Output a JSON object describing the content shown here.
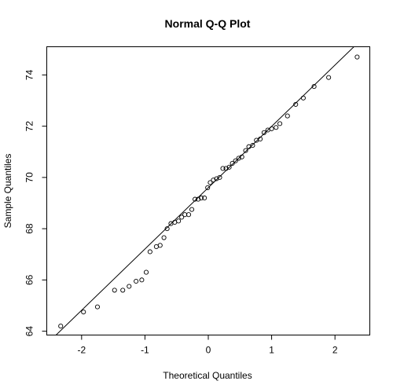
{
  "chart_data": {
    "type": "scatter",
    "title": "Normal Q-Q Plot",
    "xlabel": "Theoretical Quantiles",
    "ylabel": "Sample Quantiles",
    "xlim": [
      -2.55,
      2.55
    ],
    "ylim": [
      63.85,
      75.1
    ],
    "x_ticks": [
      -2,
      -1,
      0,
      1,
      2
    ],
    "y_ticks": [
      64,
      66,
      68,
      70,
      72,
      74
    ],
    "grid": false,
    "reference_line": {
      "from": [
        -2.55,
        63.5
      ],
      "to": [
        2.55,
        75.7
      ]
    },
    "points": [
      {
        "x": -2.33,
        "y": 64.2
      },
      {
        "x": -1.97,
        "y": 64.75
      },
      {
        "x": -1.75,
        "y": 64.95
      },
      {
        "x": -1.48,
        "y": 65.6
      },
      {
        "x": -1.35,
        "y": 65.6
      },
      {
        "x": -1.25,
        "y": 65.75
      },
      {
        "x": -1.14,
        "y": 65.95
      },
      {
        "x": -1.05,
        "y": 66.0
      },
      {
        "x": -0.98,
        "y": 66.3
      },
      {
        "x": -0.92,
        "y": 67.1
      },
      {
        "x": -0.82,
        "y": 67.3
      },
      {
        "x": -0.76,
        "y": 67.35
      },
      {
        "x": -0.7,
        "y": 67.65
      },
      {
        "x": -0.65,
        "y": 68.0
      },
      {
        "x": -0.59,
        "y": 68.2
      },
      {
        "x": -0.53,
        "y": 68.25
      },
      {
        "x": -0.47,
        "y": 68.3
      },
      {
        "x": -0.42,
        "y": 68.45
      },
      {
        "x": -0.37,
        "y": 68.55
      },
      {
        "x": -0.31,
        "y": 68.55
      },
      {
        "x": -0.26,
        "y": 68.75
      },
      {
        "x": -0.21,
        "y": 69.15
      },
      {
        "x": -0.16,
        "y": 69.15
      },
      {
        "x": -0.11,
        "y": 69.2
      },
      {
        "x": -0.06,
        "y": 69.2
      },
      {
        "x": -0.01,
        "y": 69.6
      },
      {
        "x": 0.03,
        "y": 69.8
      },
      {
        "x": 0.08,
        "y": 69.9
      },
      {
        "x": 0.13,
        "y": 69.95
      },
      {
        "x": 0.18,
        "y": 70.0
      },
      {
        "x": 0.23,
        "y": 70.35
      },
      {
        "x": 0.28,
        "y": 70.35
      },
      {
        "x": 0.33,
        "y": 70.4
      },
      {
        "x": 0.38,
        "y": 70.55
      },
      {
        "x": 0.43,
        "y": 70.65
      },
      {
        "x": 0.48,
        "y": 70.75
      },
      {
        "x": 0.53,
        "y": 70.8
      },
      {
        "x": 0.59,
        "y": 71.05
      },
      {
        "x": 0.64,
        "y": 71.2
      },
      {
        "x": 0.7,
        "y": 71.25
      },
      {
        "x": 0.76,
        "y": 71.45
      },
      {
        "x": 0.82,
        "y": 71.5
      },
      {
        "x": 0.88,
        "y": 71.75
      },
      {
        "x": 0.94,
        "y": 71.85
      },
      {
        "x": 1.0,
        "y": 71.9
      },
      {
        "x": 1.07,
        "y": 71.95
      },
      {
        "x": 1.13,
        "y": 72.1
      },
      {
        "x": 1.25,
        "y": 72.4
      },
      {
        "x": 1.38,
        "y": 72.85
      },
      {
        "x": 1.5,
        "y": 73.1
      },
      {
        "x": 1.67,
        "y": 73.55
      },
      {
        "x": 1.9,
        "y": 73.9
      },
      {
        "x": 2.35,
        "y": 74.7
      }
    ]
  }
}
